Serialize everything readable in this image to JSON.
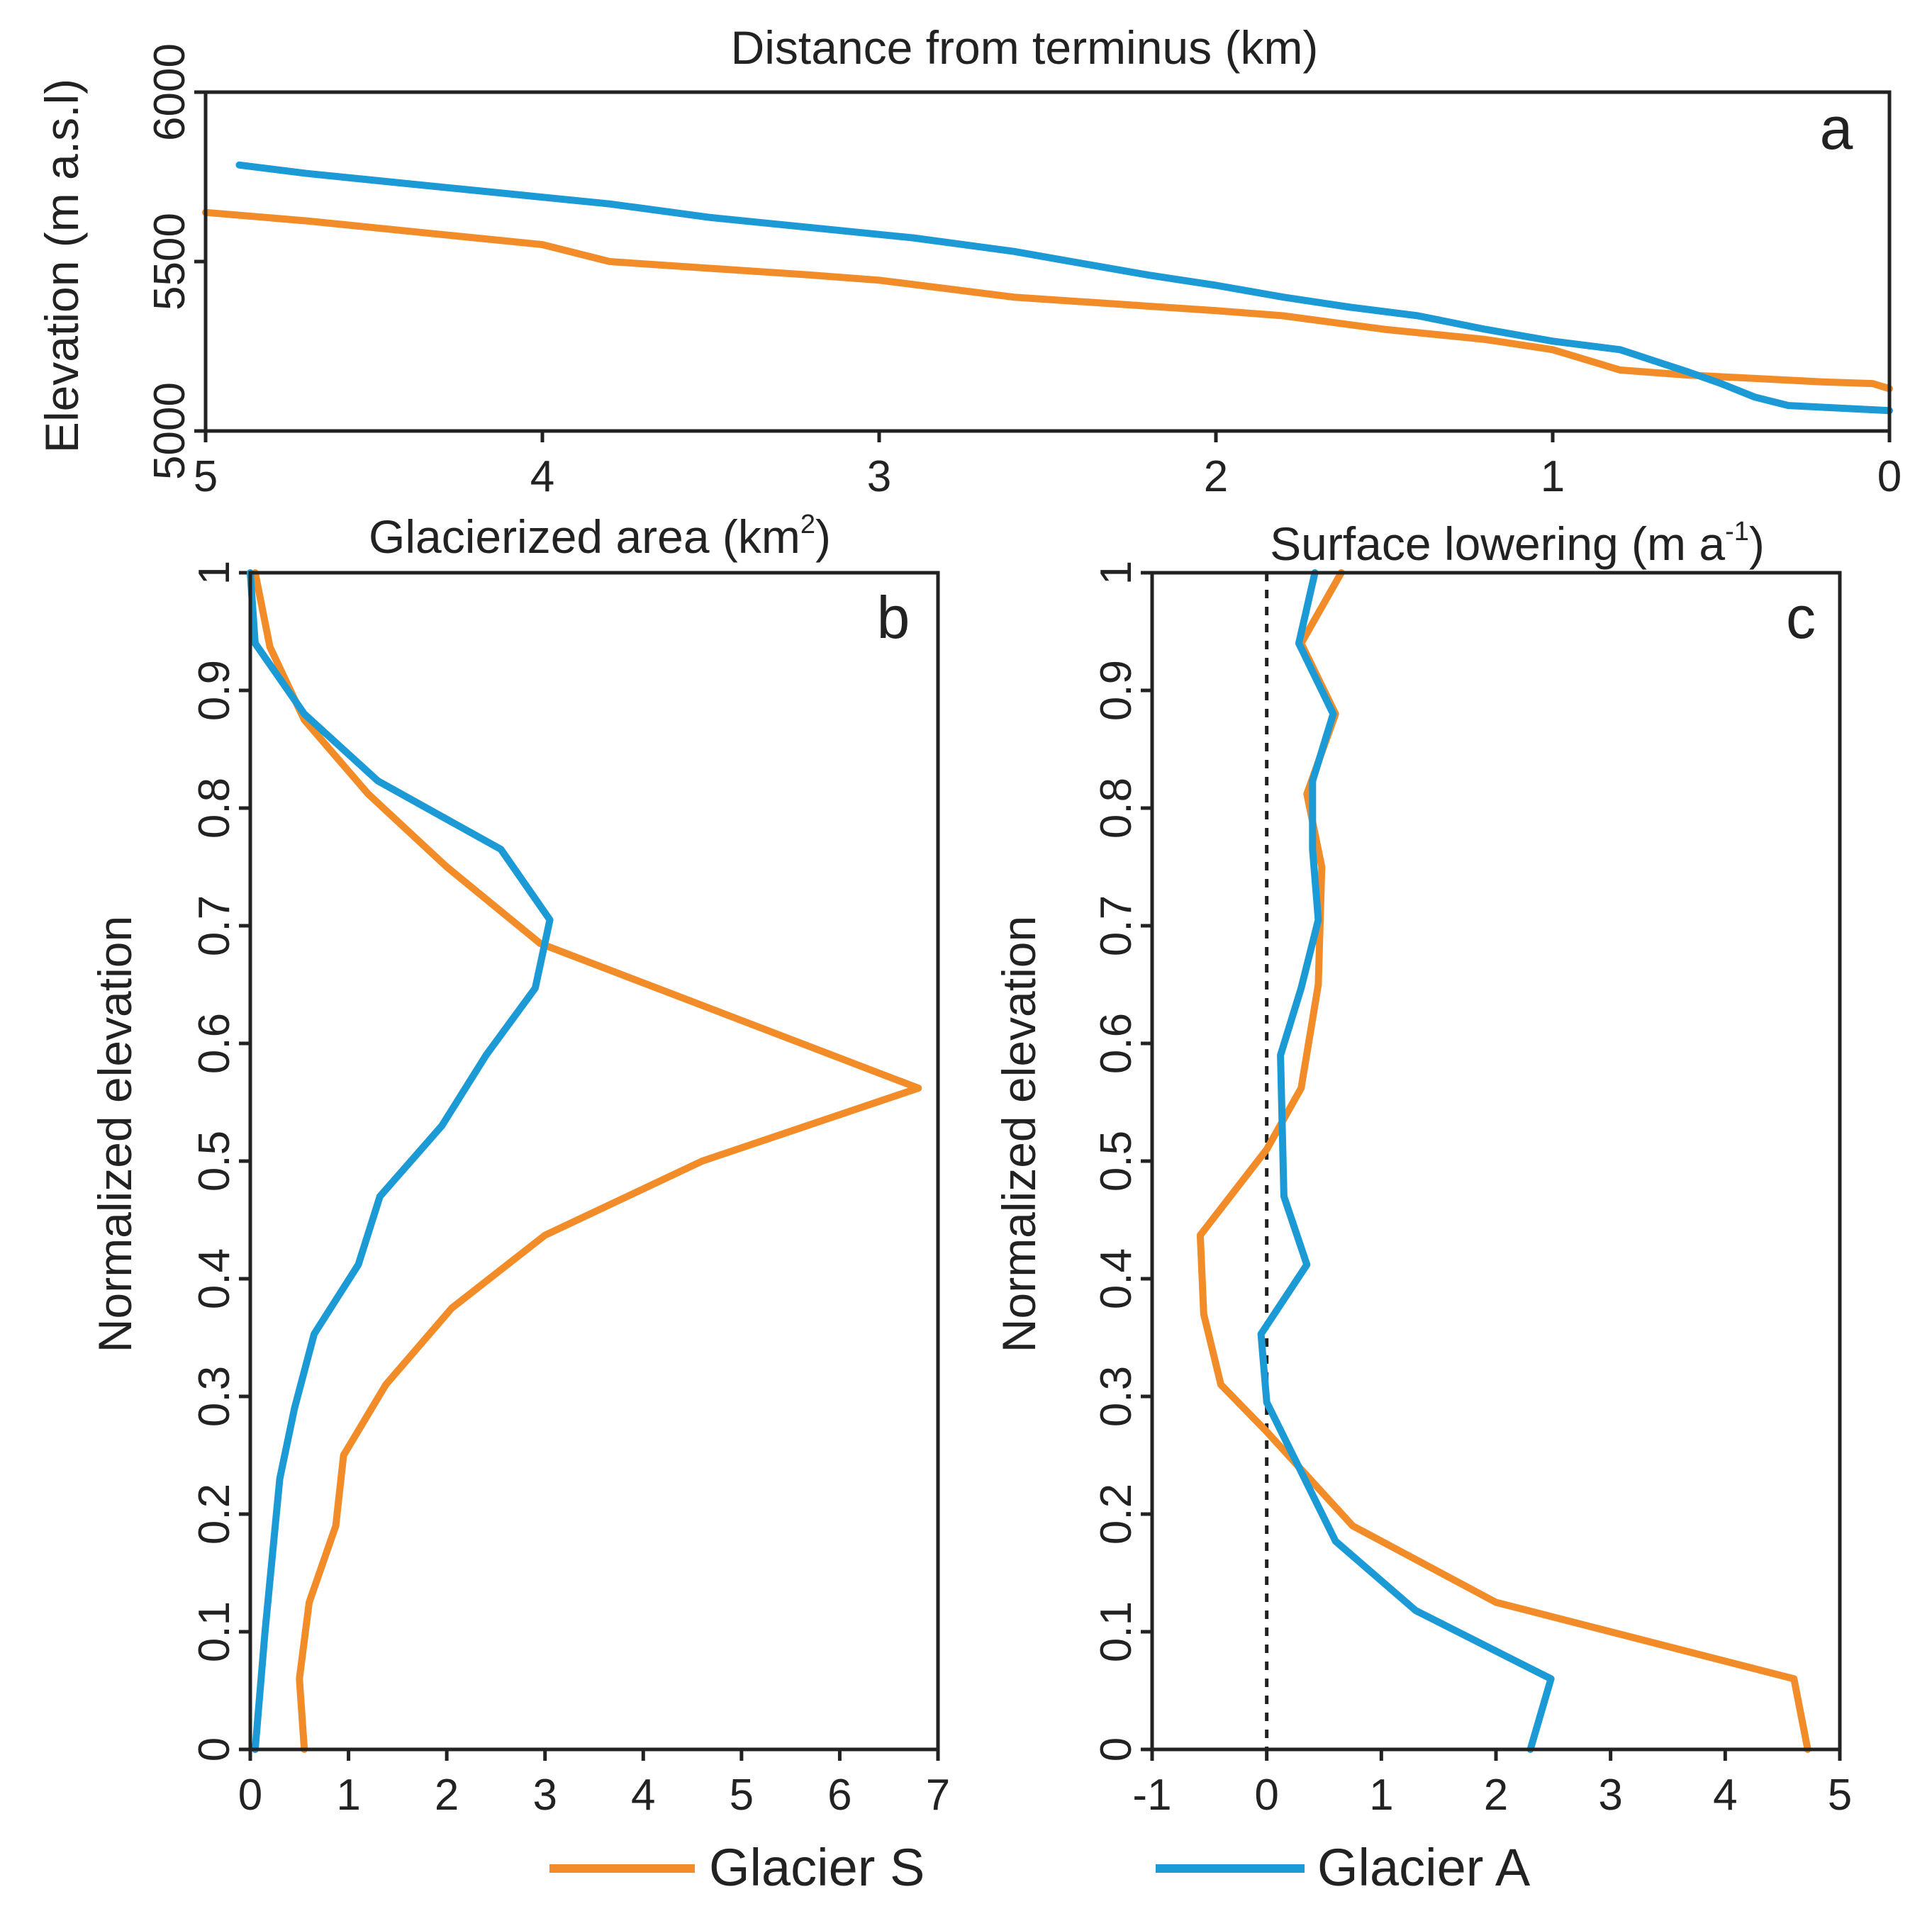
{
  "colors": {
    "glacier_s": "#F28C28",
    "glacier_a": "#1B9AD6",
    "axis": "#222222"
  },
  "legend": [
    {
      "name": "Glacier S",
      "color": "#F28C28"
    },
    {
      "name": "Glacier A",
      "color": "#1B9AD6"
    }
  ],
  "chart_data": [
    {
      "panel": "a",
      "type": "line",
      "title": "Distance from terminus (km)",
      "xlabel": "Distance from terminus (km)",
      "ylabel": "Elevation (m a.s.l)",
      "xlim": [
        5,
        0
      ],
      "ylim": [
        5000,
        6000
      ],
      "xticks": [
        5,
        4,
        3,
        2,
        1,
        0
      ],
      "yticks": [
        5000,
        5500,
        6000
      ],
      "series": [
        {
          "name": "Glacier S",
          "color": "#F28C28",
          "x": [
            5.0,
            4.7,
            4.5,
            4.3,
            4.0,
            3.8,
            3.5,
            3.2,
            3.0,
            2.8,
            2.6,
            2.3,
            2.0,
            1.8,
            1.5,
            1.2,
            1.0,
            0.8,
            0.6,
            0.4,
            0.2,
            0.05,
            0.0
          ],
          "y": [
            5645,
            5620,
            5600,
            5580,
            5550,
            5500,
            5480,
            5460,
            5445,
            5420,
            5395,
            5375,
            5355,
            5340,
            5300,
            5270,
            5240,
            5180,
            5165,
            5155,
            5145,
            5140,
            5125
          ]
        },
        {
          "name": "Glacier A",
          "color": "#1B9AD6",
          "x": [
            4.9,
            4.7,
            4.4,
            4.1,
            3.8,
            3.5,
            3.2,
            2.9,
            2.6,
            2.4,
            2.2,
            2.0,
            1.8,
            1.6,
            1.4,
            1.2,
            1.0,
            0.8,
            0.6,
            0.5,
            0.4,
            0.3,
            0.1,
            0.0
          ],
          "y": [
            5785,
            5760,
            5730,
            5700,
            5670,
            5630,
            5600,
            5570,
            5530,
            5495,
            5460,
            5430,
            5395,
            5365,
            5340,
            5300,
            5265,
            5240,
            5175,
            5140,
            5100,
            5075,
            5065,
            5060
          ]
        }
      ]
    },
    {
      "panel": "b",
      "type": "line",
      "title": "Glacierized area (km²)",
      "xlabel": "Glacierized area (km²)",
      "ylabel": "Normalized elevation",
      "xlim": [
        0,
        7
      ],
      "ylim": [
        0,
        1
      ],
      "xticks": [
        0,
        1,
        2,
        3,
        4,
        5,
        6,
        7
      ],
      "yticks": [
        0,
        0.1,
        0.2,
        0.3,
        0.4,
        0.5,
        0.6,
        0.7,
        0.8,
        0.9,
        1
      ],
      "series": [
        {
          "name": "Glacier S",
          "color": "#F28C28",
          "x": [
            0.55,
            0.5,
            0.6,
            0.87,
            0.95,
            1.38,
            2.05,
            3.0,
            4.6,
            6.8,
            2.95,
            2.0,
            1.2,
            0.55,
            0.2,
            0.05
          ],
          "y": [
            0.0,
            0.06,
            0.125,
            0.19,
            0.25,
            0.31,
            0.375,
            0.437,
            0.5,
            0.562,
            0.685,
            0.75,
            0.812,
            0.875,
            0.937,
            1.0
          ]
        },
        {
          "name": "Glacier A",
          "color": "#1B9AD6",
          "x": [
            0.05,
            0.15,
            0.3,
            0.45,
            0.65,
            1.1,
            1.32,
            1.95,
            2.4,
            2.9,
            3.05,
            2.55,
            1.3,
            0.55,
            0.05,
            0.0
          ],
          "y": [
            0.0,
            0.1,
            0.23,
            0.29,
            0.353,
            0.412,
            0.47,
            0.53,
            0.59,
            0.647,
            0.705,
            0.765,
            0.823,
            0.88,
            0.94,
            1.0
          ]
        }
      ]
    },
    {
      "panel": "c",
      "type": "line",
      "title": "Surface lowering (m a⁻¹)",
      "xlabel": "Surface lowering (m a⁻¹)",
      "ylabel": "Normalized elevation",
      "xlim": [
        -1,
        5
      ],
      "ylim": [
        0,
        1
      ],
      "xticks": [
        -1,
        0,
        1,
        2,
        3,
        4,
        5
      ],
      "yticks": [
        0,
        0.1,
        0.2,
        0.3,
        0.4,
        0.5,
        0.6,
        0.7,
        0.8,
        0.9,
        1
      ],
      "reference_line": {
        "x": 0,
        "style": "dashed"
      },
      "series": [
        {
          "name": "Glacier S",
          "color": "#F28C28",
          "x": [
            4.72,
            4.6,
            2.0,
            0.75,
            0.0,
            -0.4,
            -0.55,
            -0.58,
            0.0,
            0.3,
            0.45,
            0.48,
            0.35,
            0.6,
            0.3,
            0.65
          ],
          "y": [
            0.0,
            0.06,
            0.125,
            0.19,
            0.27,
            0.31,
            0.37,
            0.437,
            0.51,
            0.562,
            0.65,
            0.75,
            0.812,
            0.88,
            0.94,
            1.0
          ]
        },
        {
          "name": "Glacier A",
          "color": "#1B9AD6",
          "x": [
            2.3,
            2.48,
            1.3,
            0.6,
            0.0,
            -0.05,
            0.35,
            0.15,
            0.12,
            0.3,
            0.45,
            0.4,
            0.4,
            0.58,
            0.28,
            0.42
          ],
          "y": [
            0.0,
            0.06,
            0.118,
            0.177,
            0.295,
            0.353,
            0.412,
            0.47,
            0.59,
            0.647,
            0.705,
            0.765,
            0.823,
            0.88,
            0.94,
            1.0
          ]
        }
      ]
    }
  ]
}
